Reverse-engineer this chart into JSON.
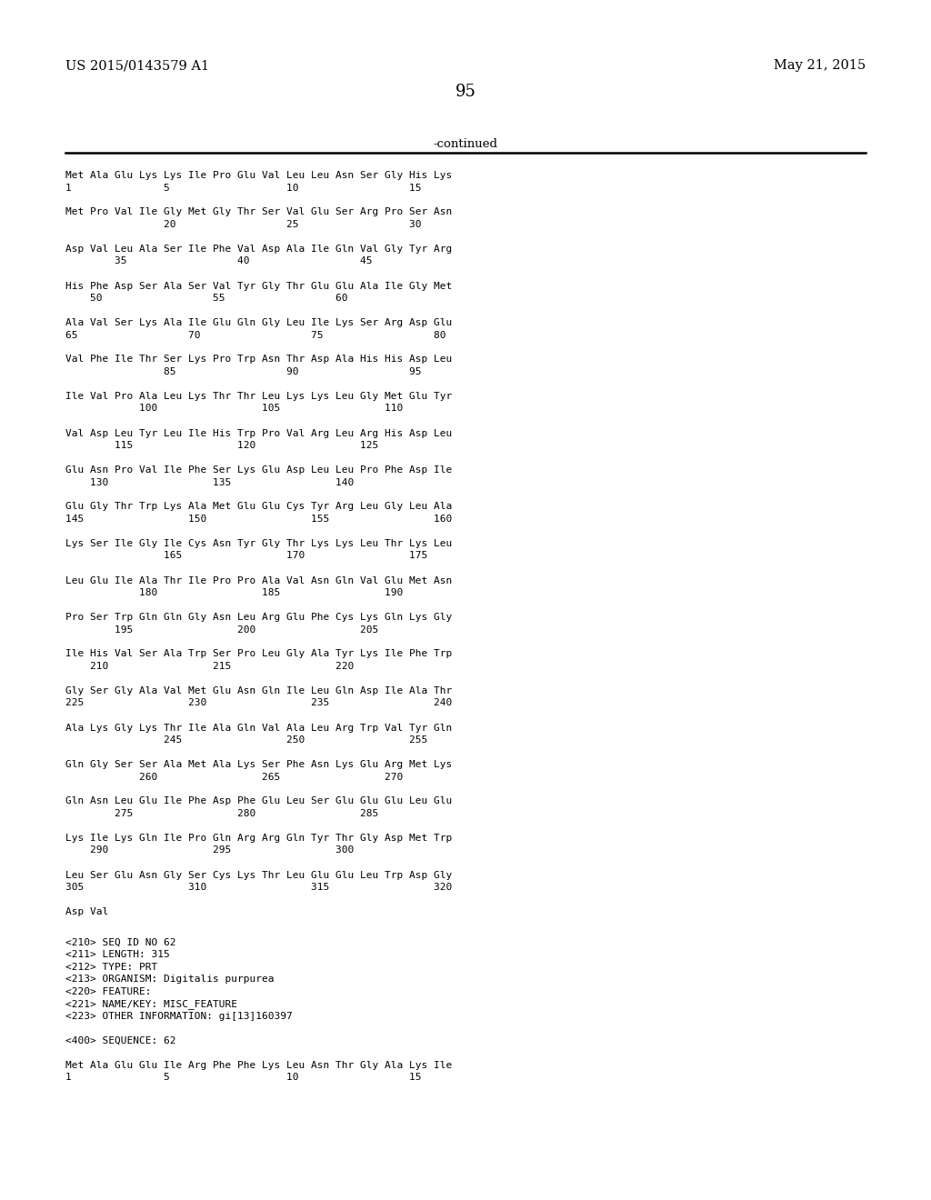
{
  "header_left": "US 2015/0143579 A1",
  "header_right": "May 21, 2015",
  "page_number": "95",
  "continued_label": "-continued",
  "background_color": "#ffffff",
  "text_color": "#000000",
  "sequence_blocks": [
    [
      "Met Ala Glu Lys Lys Ile Pro Glu Val Leu Leu Asn Ser Gly His Lys",
      "1               5                   10                  15"
    ],
    [
      "Met Pro Val Ile Gly Met Gly Thr Ser Val Glu Ser Arg Pro Ser Asn",
      "                20                  25                  30"
    ],
    [
      "Asp Val Leu Ala Ser Ile Phe Val Asp Ala Ile Gln Val Gly Tyr Arg",
      "        35                  40                  45"
    ],
    [
      "His Phe Asp Ser Ala Ser Val Tyr Gly Thr Glu Glu Ala Ile Gly Met",
      "    50                  55                  60"
    ],
    [
      "Ala Val Ser Lys Ala Ile Glu Gln Gly Leu Ile Lys Ser Arg Asp Glu",
      "65                  70                  75                  80"
    ],
    [
      "Val Phe Ile Thr Ser Lys Pro Trp Asn Thr Asp Ala His His Asp Leu",
      "                85                  90                  95"
    ],
    [
      "Ile Val Pro Ala Leu Lys Thr Thr Leu Lys Lys Leu Gly Met Glu Tyr",
      "            100                 105                 110"
    ],
    [
      "Val Asp Leu Tyr Leu Ile His Trp Pro Val Arg Leu Arg His Asp Leu",
      "        115                 120                 125"
    ],
    [
      "Glu Asn Pro Val Ile Phe Ser Lys Glu Asp Leu Leu Pro Phe Asp Ile",
      "    130                 135                 140"
    ],
    [
      "Glu Gly Thr Trp Lys Ala Met Glu Glu Cys Tyr Arg Leu Gly Leu Ala",
      "145                 150                 155                 160"
    ],
    [
      "Lys Ser Ile Gly Ile Cys Asn Tyr Gly Thr Lys Lys Leu Thr Lys Leu",
      "                165                 170                 175"
    ],
    [
      "Leu Glu Ile Ala Thr Ile Pro Pro Ala Val Asn Gln Val Glu Met Asn",
      "            180                 185                 190"
    ],
    [
      "Pro Ser Trp Gln Gln Gly Asn Leu Arg Glu Phe Cys Lys Gln Lys Gly",
      "        195                 200                 205"
    ],
    [
      "Ile His Val Ser Ala Trp Ser Pro Leu Gly Ala Tyr Lys Ile Phe Trp",
      "    210                 215                 220"
    ],
    [
      "Gly Ser Gly Ala Val Met Glu Asn Gln Ile Leu Gln Asp Ile Ala Thr",
      "225                 230                 235                 240"
    ],
    [
      "Ala Lys Gly Lys Thr Ile Ala Gln Val Ala Leu Arg Trp Val Tyr Gln",
      "                245                 250                 255"
    ],
    [
      "Gln Gly Ser Ser Ala Met Ala Lys Ser Phe Asn Lys Glu Arg Met Lys",
      "            260                 265                 270"
    ],
    [
      "Gln Asn Leu Glu Ile Phe Asp Phe Glu Leu Ser Glu Glu Glu Leu Glu",
      "        275                 280                 285"
    ],
    [
      "Lys Ile Lys Gln Ile Pro Gln Arg Arg Gln Tyr Thr Gly Asp Met Trp",
      "    290                 295                 300"
    ],
    [
      "Leu Ser Glu Asn Gly Ser Cys Lys Thr Leu Glu Glu Leu Trp Asp Gly",
      "305                 310                 315                 320"
    ],
    [
      "Asp Val",
      ""
    ]
  ],
  "metadata_lines": [
    "<210> SEQ ID NO 62",
    "<211> LENGTH: 315",
    "<212> TYPE: PRT",
    "<213> ORGANISM: Digitalis purpurea",
    "<220> FEATURE:",
    "<221> NAME/KEY: MISC_FEATURE",
    "<223> OTHER INFORMATION: gi[13]160397",
    "",
    "<400> SEQUENCE: 62",
    "",
    "Met Ala Glu Glu Ile Arg Phe Phe Lys Leu Asn Thr Gly Ala Lys Ile",
    "1               5                   10                  15"
  ]
}
